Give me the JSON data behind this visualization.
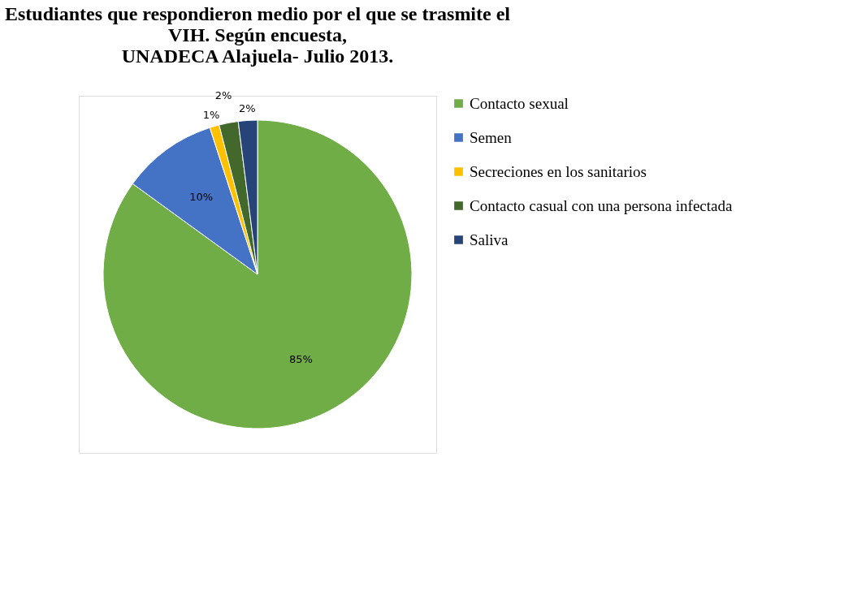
{
  "chart_data": {
    "type": "pie",
    "title": "Estudiantes que respondieron medio por el que se trasmite el\nVIH. Según encuesta,\nUNADECA Alajuela- Julio 2013.",
    "categories": [
      "Contacto sexual",
      "Semen",
      "Secreciones en los sanitarios",
      "Contacto casual con una persona infectada",
      "Saliva"
    ],
    "values": [
      85,
      10,
      1,
      2,
      2
    ],
    "colors": [
      "#70ad47",
      "#4472c4",
      "#ffc000",
      "#43682b",
      "#264478"
    ],
    "value_labels": [
      "85%",
      "10%",
      "1%",
      "2%",
      "2%"
    ],
    "legend": "right"
  }
}
